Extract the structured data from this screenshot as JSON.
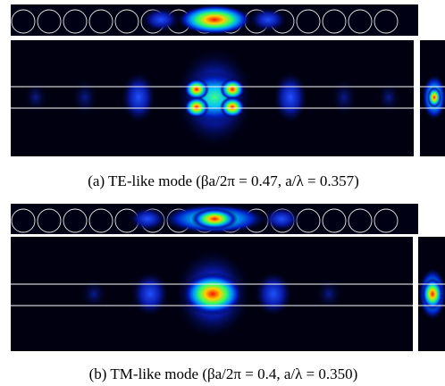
{
  "figure": {
    "panels": [
      {
        "caption": "(a) TE-like mode (βa/2π = 0.47,  a/λ = 0.357)"
      },
      {
        "caption": "(b) TM-like mode (βa/2π = 0.4,  a/λ = 0.350)"
      }
    ]
  }
}
